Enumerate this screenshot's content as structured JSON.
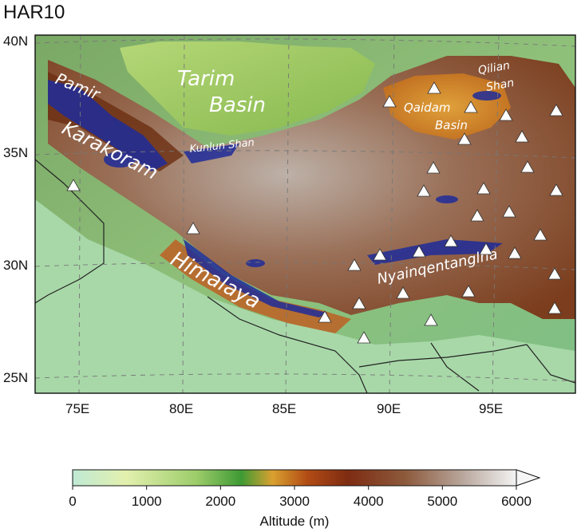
{
  "map": {
    "title": "HAR10",
    "lon_ticks": [
      "75E",
      "80E",
      "85E",
      "90E",
      "95E"
    ],
    "lat_ticks": [
      "40N",
      "35N",
      "30N",
      "25N"
    ],
    "regions": [
      {
        "name": "Tarim",
        "size": "big"
      },
      {
        "name": "Basin",
        "size": "big"
      },
      {
        "name": "Pamir",
        "size": "mid"
      },
      {
        "name": "Karakoram",
        "size": "big"
      },
      {
        "name": "Kunlun Shan",
        "size": "small"
      },
      {
        "name": "Qaidam",
        "size": "small"
      },
      {
        "name": "Basin",
        "size": "small"
      },
      {
        "name": "Qilian",
        "size": "small"
      },
      {
        "name": "Shan",
        "size": "small"
      },
      {
        "name": "Himalaya",
        "size": "big"
      },
      {
        "name": "Nyainqentanglha",
        "size": "mid"
      }
    ],
    "station_marker": "white-triangle-icon"
  },
  "colorbar": {
    "label": "Altitude (m)",
    "ticks": [
      "0",
      "1000",
      "2000",
      "3000",
      "4000",
      "5000",
      "6000"
    ],
    "colors": [
      "#bfe9d4",
      "#e3f0ae",
      "#9ccc6a",
      "#3e9a34",
      "#d9a030",
      "#b14b14",
      "#7e2c12",
      "#8d5a3c",
      "#b9a79d",
      "#f4f4f4"
    ]
  }
}
